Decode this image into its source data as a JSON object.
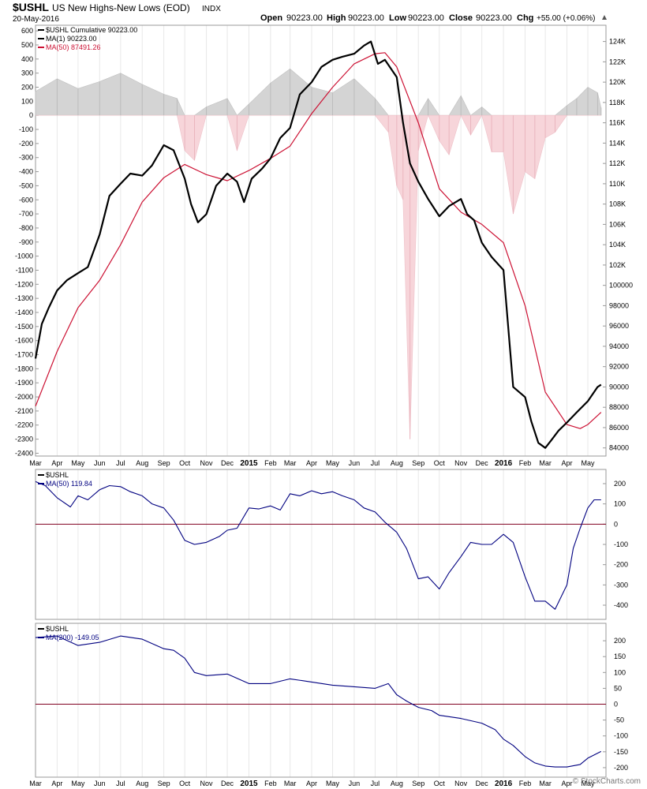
{
  "header": {
    "symbol": "$USHL",
    "name": "US New Highs-New Lows (EOD)",
    "exchange": "INDX",
    "date": "20-May-2016",
    "open_label": "Open",
    "open_value": "90223.00",
    "high_label": "High",
    "high_value": "90223.00",
    "low_label": "Low",
    "low_value": "90223.00",
    "close_label": "Close",
    "close_value": "90223.00",
    "chg_label": "Chg",
    "chg_value": "+55.00 (+0.06%)",
    "watermark": "© StockCharts.com"
  },
  "colors": {
    "cumulative": "#000000",
    "ma50": "#cc1133",
    "panel_line": "#000080",
    "zero_line": "#800020",
    "hist_pos": "#d4d4d4",
    "hist_neg": "#f7d5da",
    "grid": "#e8e8e8",
    "axis_text": "#000000"
  },
  "time_axis": {
    "labels": [
      "Mar",
      "Apr",
      "May",
      "Jun",
      "Jul",
      "Aug",
      "Sep",
      "Oct",
      "Nov",
      "Dec",
      "2015",
      "Feb",
      "Mar",
      "Apr",
      "May",
      "Jun",
      "Jul",
      "Aug",
      "Sep",
      "Oct",
      "Nov",
      "Dec",
      "2016",
      "Feb",
      "Mar",
      "Apr",
      "May"
    ],
    "bold": [
      "2015",
      "2016"
    ],
    "start": "2014-03-01",
    "end": "2016-05-27"
  },
  "chart_data": [
    {
      "type": "line",
      "legend": [
        {
          "label": "$USHL Cumulative 90223.00",
          "color_key": "cumulative"
        },
        {
          "label": "MA(1) 90223.00",
          "color_key": "cumulative"
        },
        {
          "label": "MA(50) 87491.26",
          "color_key": "ma50"
        }
      ],
      "right_axis": {
        "ticks": [
          84000,
          86000,
          88000,
          90000,
          92000,
          94000,
          96000,
          98000,
          100000,
          102000,
          104000,
          106000,
          108000,
          110000,
          112000,
          114000,
          116000,
          118000,
          120000,
          122000,
          124000
        ],
        "tick_labels": [
          "84000",
          "86000",
          "88000",
          "90000",
          "92000",
          "94000",
          "96000",
          "98000",
          "100000",
          "102K",
          "104K",
          "106K",
          "108K",
          "110K",
          "112K",
          "114K",
          "116K",
          "118K",
          "120K",
          "122K",
          "124K"
        ],
        "range": [
          83200,
          125600
        ]
      },
      "left_axis": {
        "ticks": [
          600,
          500,
          400,
          300,
          200,
          100,
          0,
          -100,
          -200,
          -300,
          -400,
          -500,
          -600,
          -700,
          -800,
          -900,
          -1000,
          -1100,
          -1200,
          -1300,
          -1400,
          -1500,
          -1600,
          -1700,
          -1800,
          -1900,
          -2000,
          -2100,
          -2200,
          -2300,
          -2400
        ],
        "range": [
          -2420,
          640
        ]
      },
      "cumulative": {
        "x": [
          "2014-03-01",
          "2014-03-10",
          "2014-03-20",
          "2014-04-01",
          "2014-04-15",
          "2014-05-01",
          "2014-05-15",
          "2014-06-01",
          "2014-06-15",
          "2014-07-01",
          "2014-07-15",
          "2014-08-01",
          "2014-08-15",
          "2014-09-01",
          "2014-09-15",
          "2014-10-01",
          "2014-10-10",
          "2014-10-20",
          "2014-11-01",
          "2014-11-15",
          "2014-12-01",
          "2014-12-15",
          "2014-12-25",
          "2015-01-05",
          "2015-01-20",
          "2015-02-01",
          "2015-02-15",
          "2015-03-01",
          "2015-03-15",
          "2015-04-01",
          "2015-04-15",
          "2015-05-01",
          "2015-05-15",
          "2015-06-01",
          "2015-06-15",
          "2015-06-25",
          "2015-07-05",
          "2015-07-15",
          "2015-08-01",
          "2015-08-10",
          "2015-08-20",
          "2015-09-01",
          "2015-09-15",
          "2015-10-01",
          "2015-10-15",
          "2015-11-01",
          "2015-11-10",
          "2015-11-20",
          "2015-12-01",
          "2015-12-15",
          "2016-01-01",
          "2016-01-15",
          "2016-02-01",
          "2016-02-10",
          "2016-02-20",
          "2016-03-01",
          "2016-03-10",
          "2016-03-20",
          "2016-04-01",
          "2016-04-15",
          "2016-05-01",
          "2016-05-15",
          "2016-05-20"
        ],
        "y": [
          92800,
          96200,
          97800,
          99500,
          100500,
          101200,
          101800,
          105000,
          108800,
          110000,
          111000,
          110800,
          111800,
          113800,
          113300,
          110500,
          108000,
          106200,
          107000,
          109800,
          111000,
          110200,
          108200,
          110500,
          111500,
          112500,
          114500,
          115500,
          118800,
          120000,
          121500,
          122200,
          122500,
          122800,
          123600,
          124000,
          121800,
          122200,
          120500,
          116000,
          112000,
          110200,
          108500,
          106800,
          107800,
          108500,
          107000,
          106400,
          104200,
          102800,
          101500,
          90000,
          89000,
          86600,
          84500,
          84000,
          84800,
          85700,
          86500,
          87500,
          88600,
          90000,
          90223
        ]
      },
      "ma50": {
        "x": [
          "2014-03-01",
          "2014-04-01",
          "2014-05-01",
          "2014-06-01",
          "2014-07-01",
          "2014-08-01",
          "2014-09-01",
          "2014-10-01",
          "2014-11-01",
          "2014-12-01",
          "2015-01-01",
          "2015-02-01",
          "2015-03-01",
          "2015-04-01",
          "2015-05-01",
          "2015-06-01",
          "2015-07-01",
          "2015-07-15",
          "2015-08-01",
          "2015-09-01",
          "2015-10-01",
          "2015-11-01",
          "2015-12-01",
          "2016-01-01",
          "2016-02-01",
          "2016-03-01",
          "2016-04-01",
          "2016-04-20",
          "2016-05-01",
          "2016-05-20"
        ],
        "y": [
          88100,
          93500,
          97800,
          100500,
          104000,
          108200,
          110600,
          111900,
          110900,
          110300,
          111300,
          112500,
          113700,
          116900,
          119500,
          121800,
          122800,
          122900,
          121500,
          116000,
          109500,
          107200,
          106000,
          104200,
          98000,
          89500,
          86300,
          85900,
          86300,
          87500
        ]
      },
      "histogram": {
        "x": [
          "2014-03-01",
          "2014-04-01",
          "2014-05-01",
          "2014-06-01",
          "2014-07-01",
          "2014-08-01",
          "2014-09-01",
          "2014-09-20",
          "2014-10-01",
          "2014-10-15",
          "2014-11-01",
          "2014-12-01",
          "2014-12-15",
          "2015-01-01",
          "2015-02-01",
          "2015-03-01",
          "2015-04-01",
          "2015-05-01",
          "2015-06-01",
          "2015-07-01",
          "2015-07-20",
          "2015-08-01",
          "2015-08-10",
          "2015-08-20",
          "2015-09-01",
          "2015-09-15",
          "2015-10-01",
          "2015-10-15",
          "2015-11-01",
          "2015-11-15",
          "2015-12-01",
          "2015-12-15",
          "2016-01-01",
          "2016-01-15",
          "2016-02-01",
          "2016-02-15",
          "2016-03-01",
          "2016-03-15",
          "2016-04-01",
          "2016-04-15",
          "2016-05-01",
          "2016-05-15",
          "2016-05-20"
        ],
        "y": [
          170,
          260,
          190,
          240,
          300,
          220,
          150,
          120,
          -250,
          -320,
          60,
          120,
          -250,
          80,
          230,
          330,
          200,
          160,
          260,
          120,
          -120,
          -500,
          -600,
          -2300,
          -250,
          120,
          -180,
          -280,
          140,
          -140,
          60,
          -260,
          -260,
          -700,
          -400,
          -450,
          -160,
          -120,
          70,
          120,
          200,
          160,
          55
        ]
      }
    },
    {
      "type": "line",
      "legend": [
        {
          "label": "$USHL",
          "color_key": "axis_text"
        },
        {
          "label": "MA(50) 119.84",
          "color_key": "panel_line"
        }
      ],
      "right_axis": {
        "ticks": [
          200,
          100,
          0,
          -100,
          -200,
          -300,
          -400
        ],
        "range": [
          -470,
          270
        ]
      },
      "zero_line": 0,
      "series": {
        "x": [
          "2014-03-01",
          "2014-03-15",
          "2014-04-01",
          "2014-04-20",
          "2014-05-01",
          "2014-05-15",
          "2014-06-01",
          "2014-06-15",
          "2014-07-01",
          "2014-07-15",
          "2014-08-01",
          "2014-08-15",
          "2014-09-01",
          "2014-09-15",
          "2014-10-01",
          "2014-10-15",
          "2014-11-01",
          "2014-11-20",
          "2014-12-01",
          "2014-12-15",
          "2015-01-01",
          "2015-01-15",
          "2015-02-01",
          "2015-02-15",
          "2015-03-01",
          "2015-03-15",
          "2015-04-01",
          "2015-04-15",
          "2015-05-01",
          "2015-05-15",
          "2015-06-01",
          "2015-06-15",
          "2015-07-01",
          "2015-07-15",
          "2015-08-01",
          "2015-08-15",
          "2015-09-01",
          "2015-09-15",
          "2015-10-01",
          "2015-10-15",
          "2015-11-01",
          "2015-11-15",
          "2015-12-01",
          "2015-12-15",
          "2016-01-01",
          "2016-01-15",
          "2016-02-01",
          "2016-02-15",
          "2016-03-01",
          "2016-03-15",
          "2016-04-01",
          "2016-04-10",
          "2016-04-20",
          "2016-05-01",
          "2016-05-10",
          "2016-05-20"
        ],
        "y": [
          210,
          190,
          130,
          85,
          140,
          120,
          170,
          190,
          185,
          160,
          140,
          100,
          80,
          20,
          -80,
          -100,
          -90,
          -60,
          -30,
          -20,
          80,
          75,
          90,
          70,
          150,
          140,
          165,
          150,
          160,
          140,
          120,
          80,
          60,
          10,
          -40,
          -120,
          -270,
          -260,
          -320,
          -240,
          -160,
          -90,
          -100,
          -100,
          -50,
          -90,
          -260,
          -380,
          -380,
          -420,
          -300,
          -120,
          -20,
          80,
          120,
          120
        ]
      }
    },
    {
      "type": "line",
      "legend": [
        {
          "label": "$USHL",
          "color_key": "axis_text"
        },
        {
          "label": "MA(200) -149.05",
          "color_key": "panel_line"
        }
      ],
      "right_axis": {
        "ticks": [
          200,
          150,
          100,
          50,
          0,
          -50,
          -100,
          -150,
          -200
        ],
        "range": [
          -230,
          255
        ]
      },
      "zero_line": 0,
      "series": {
        "x": [
          "2014-03-01",
          "2014-04-01",
          "2014-05-01",
          "2014-06-01",
          "2014-07-01",
          "2014-08-01",
          "2014-09-01",
          "2014-09-15",
          "2014-10-01",
          "2014-10-15",
          "2014-11-01",
          "2014-12-01",
          "2015-01-01",
          "2015-02-01",
          "2015-03-01",
          "2015-04-01",
          "2015-05-01",
          "2015-06-01",
          "2015-07-01",
          "2015-07-20",
          "2015-08-01",
          "2015-08-15",
          "2015-09-01",
          "2015-09-20",
          "2015-10-01",
          "2015-11-01",
          "2015-12-01",
          "2015-12-20",
          "2016-01-01",
          "2016-01-15",
          "2016-02-01",
          "2016-02-15",
          "2016-03-01",
          "2016-03-15",
          "2016-04-01",
          "2016-04-20",
          "2016-05-01",
          "2016-05-20"
        ],
        "y": [
          210,
          215,
          185,
          195,
          215,
          205,
          175,
          170,
          145,
          100,
          90,
          95,
          65,
          65,
          80,
          70,
          60,
          55,
          50,
          65,
          30,
          10,
          -10,
          -20,
          -35,
          -45,
          -60,
          -80,
          -110,
          -130,
          -165,
          -185,
          -195,
          -198,
          -198,
          -190,
          -170,
          -149
        ]
      }
    }
  ]
}
